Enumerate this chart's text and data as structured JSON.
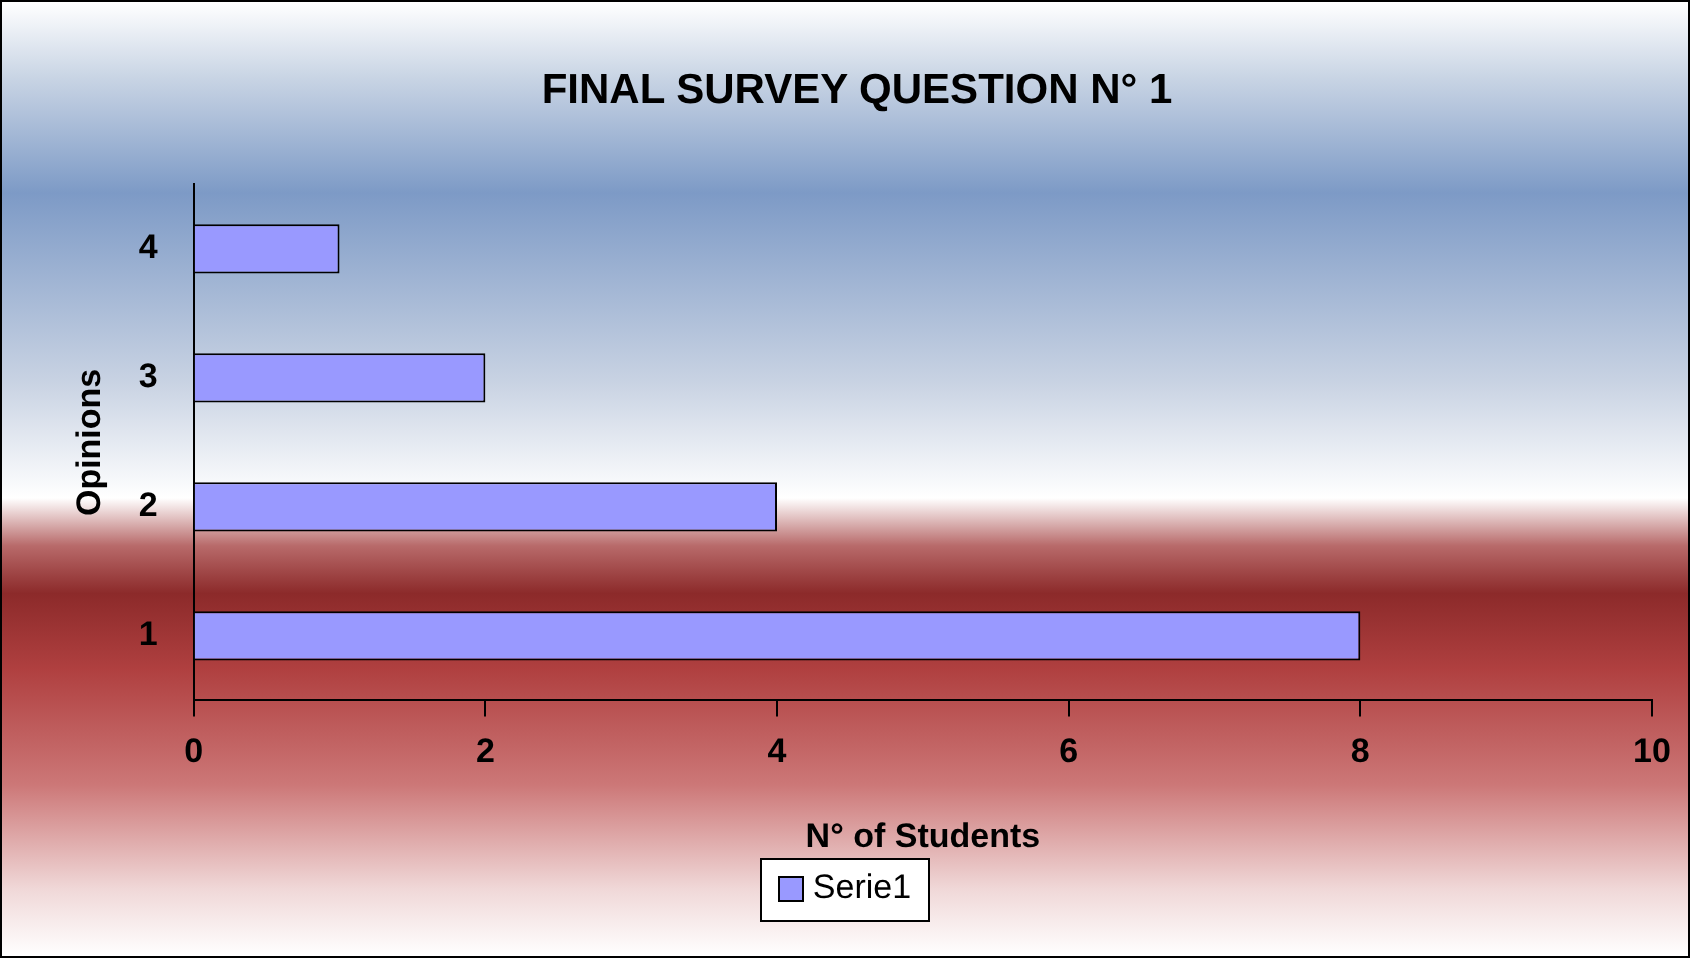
{
  "chart_data": {
    "type": "bar",
    "orientation": "horizontal",
    "title": "FINAL SURVEY QUESTION N° 1",
    "xlabel": "N° of Students",
    "ylabel": "Opinions",
    "categories": [
      "4",
      "3",
      "2",
      "1"
    ],
    "series": [
      {
        "name": "Serie1",
        "color": "#9999ff",
        "values": [
          1,
          2,
          4,
          8
        ]
      }
    ],
    "xlim": [
      0,
      10
    ],
    "xticks": [
      0,
      2,
      4,
      6,
      8,
      10
    ],
    "grid": false,
    "legend": "bottom"
  }
}
